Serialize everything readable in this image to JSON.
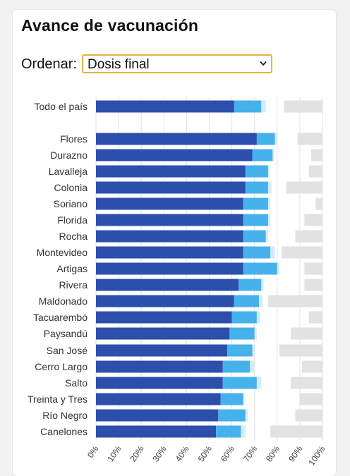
{
  "card": {
    "title": "Avance de vacunación"
  },
  "controls": {
    "sort_label": "Ordenar:",
    "sort_value": "Dosis final",
    "chevron_icon": "chevron-down-icon"
  },
  "colors": {
    "dosis_final": "#2d4fac",
    "primera_dosis": "#46b2ec",
    "extra": "#d4ebf9",
    "background_gray": "#e2e2e2",
    "grid": "#e2e2e2",
    "border_accent": "#e8b33c"
  },
  "chart_data": {
    "type": "bar",
    "orientation": "horizontal",
    "stacked": true,
    "categories": [
      "Todo el país",
      "Flores",
      "Durazno",
      "Lavalleja",
      "Colonia",
      "Soriano",
      "Florida",
      "Rocha",
      "Montevideo",
      "Artigas",
      "Rivera",
      "Maldonado",
      "Tacuarembó",
      "Paysandú",
      "San José",
      "Cerro Largo",
      "Salto",
      "Treinta y Tres",
      "Río Negro",
      "Canelones"
    ],
    "series": [
      {
        "values": [
          61,
          71,
          69,
          66,
          66,
          65,
          65,
          65,
          65,
          65,
          63,
          61,
          60,
          59,
          58,
          56,
          56,
          55,
          54,
          53
        ]
      },
      {
        "values": [
          12,
          8,
          9,
          10,
          10,
          11,
          11,
          10,
          12,
          15,
          10,
          11,
          11,
          11,
          11,
          12,
          15,
          10,
          12,
          11
        ]
      },
      {
        "values": [
          2,
          1,
          0.5,
          0.5,
          1.5,
          1,
          1,
          1,
          2,
          1,
          1,
          1.5,
          1.5,
          1,
          1,
          2,
          2,
          0.5,
          1,
          2
        ]
      }
    ],
    "gray_bar_start": [
      83,
      89,
      95,
      94,
      84,
      97,
      92,
      88,
      82,
      92,
      92,
      76,
      94,
      86,
      81,
      91,
      86,
      90,
      88,
      77
    ],
    "xlim": [
      0,
      100
    ],
    "xticks": [
      "0%",
      "10%",
      "20%",
      "30%",
      "40%",
      "50%",
      "60%",
      "70%",
      "80%",
      "90%",
      "100%"
    ],
    "grid": true
  }
}
